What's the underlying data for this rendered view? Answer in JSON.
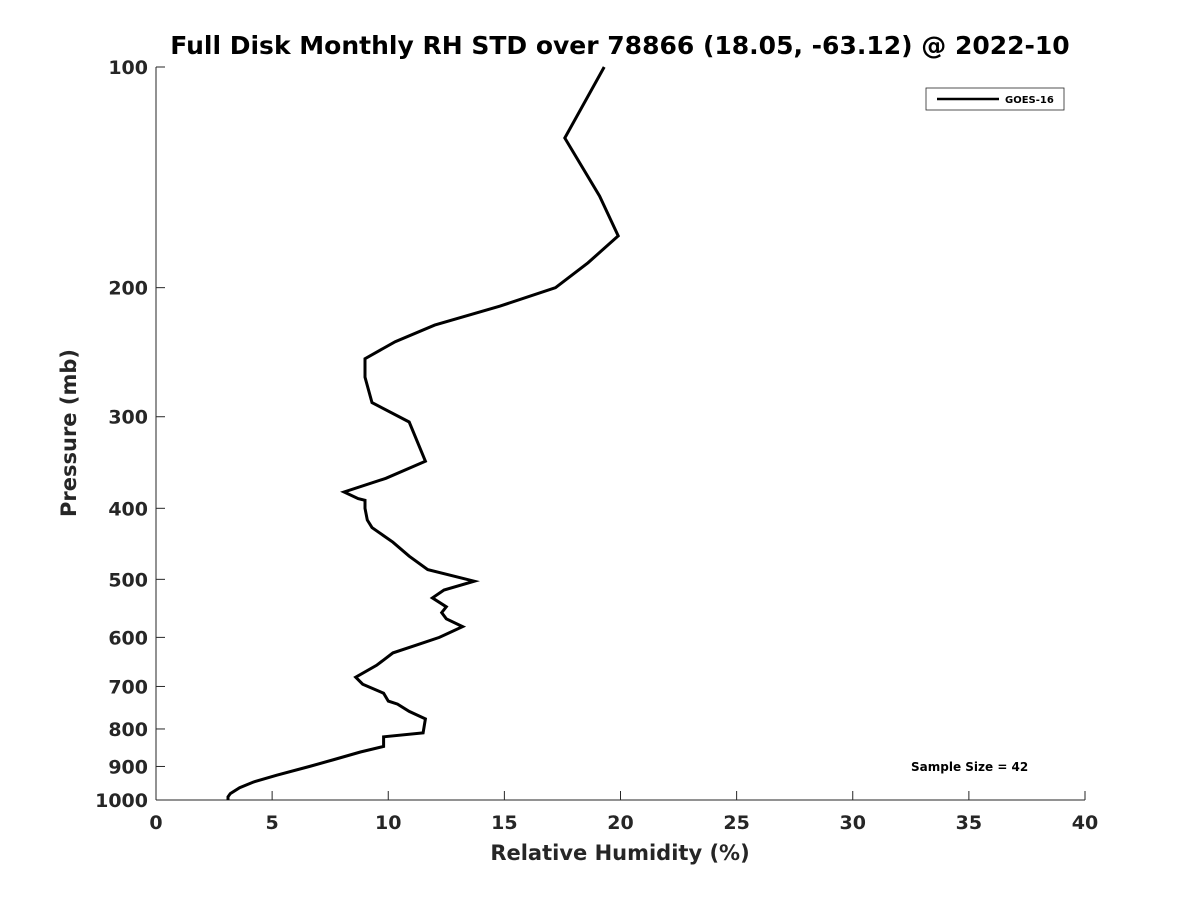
{
  "chart_data": {
    "type": "line",
    "title": "Full Disk Monthly RH STD over 78866 (18.05, -63.12) @ 2022-10",
    "xlabel": "Relative Humidity (%)",
    "ylabel": "Pressure (mb)",
    "xlim": [
      0,
      40
    ],
    "ylim": [
      100,
      1000
    ],
    "y_scale": "log",
    "y_reversed": true,
    "x_ticks": [
      0,
      5,
      10,
      15,
      20,
      25,
      30,
      35,
      40
    ],
    "y_ticks": [
      100,
      200,
      300,
      400,
      500,
      600,
      700,
      800,
      900,
      1000
    ],
    "grid": false,
    "legend_position": "top-right",
    "series": [
      {
        "name": "GOES-16",
        "color": "#000000",
        "points": [
          [
            19.3,
            100
          ],
          [
            17.6,
            125
          ],
          [
            19.1,
            150
          ],
          [
            19.9,
            170
          ],
          [
            18.6,
            185
          ],
          [
            17.2,
            200
          ],
          [
            14.8,
            212
          ],
          [
            12.0,
            225
          ],
          [
            10.3,
            237
          ],
          [
            9.0,
            250
          ],
          [
            9.0,
            262
          ],
          [
            9.0,
            265
          ],
          [
            9.3,
            287
          ],
          [
            10.9,
            305
          ],
          [
            11.6,
            345
          ],
          [
            9.9,
            364
          ],
          [
            8.1,
            380
          ],
          [
            8.7,
            388
          ],
          [
            9.0,
            390
          ],
          [
            9.0,
            400
          ],
          [
            9.1,
            415
          ],
          [
            9.3,
            425
          ],
          [
            10.2,
            445
          ],
          [
            10.9,
            465
          ],
          [
            11.7,
            485
          ],
          [
            13.7,
            503
          ],
          [
            12.4,
            517
          ],
          [
            11.9,
            530
          ],
          [
            12.5,
            545
          ],
          [
            12.3,
            555
          ],
          [
            12.5,
            566
          ],
          [
            13.2,
            580
          ],
          [
            12.2,
            600
          ],
          [
            11.2,
            615
          ],
          [
            10.2,
            630
          ],
          [
            9.5,
            655
          ],
          [
            8.6,
            680
          ],
          [
            8.9,
            695
          ],
          [
            9.8,
            715
          ],
          [
            10.0,
            733
          ],
          [
            10.4,
            740
          ],
          [
            10.9,
            757
          ],
          [
            11.6,
            775
          ],
          [
            11.5,
            810
          ],
          [
            9.8,
            820
          ],
          [
            9.8,
            845
          ],
          [
            8.8,
            860
          ],
          [
            7.6,
            882
          ],
          [
            6.6,
            900
          ],
          [
            5.2,
            925
          ],
          [
            4.2,
            945
          ],
          [
            3.6,
            962
          ],
          [
            3.2,
            980
          ],
          [
            3.1,
            990
          ],
          [
            3.1,
            1000
          ]
        ]
      }
    ],
    "annotations": [
      "Sample Size = 42"
    ]
  }
}
